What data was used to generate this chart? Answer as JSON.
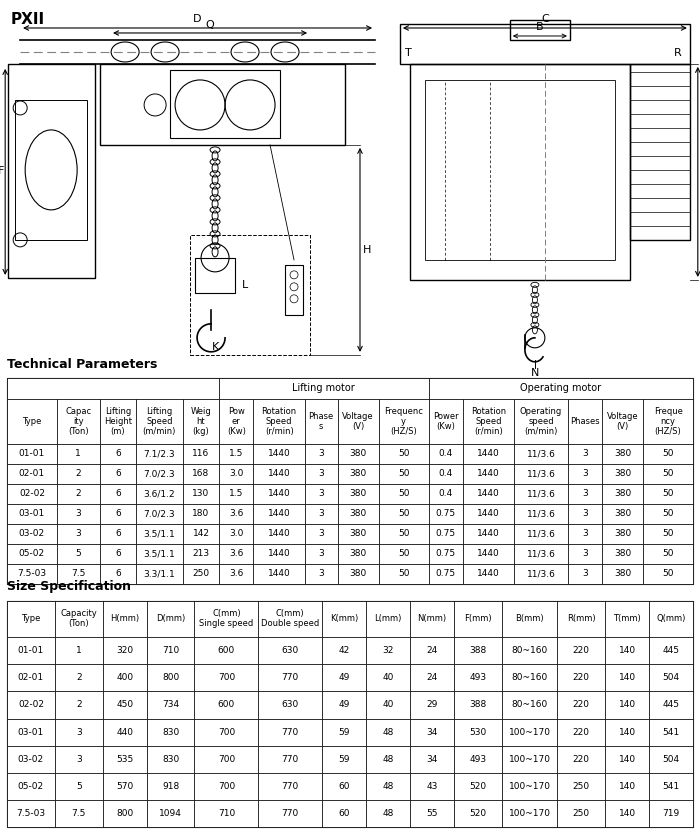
{
  "title": "PXII",
  "section1_title": "Technical Parameters",
  "section2_title": "Size Specification",
  "tech_col_headers": [
    "Type",
    "Capac\nity\n(Ton)",
    "Lifting\nHeight\n(m)",
    "Lifting\nSpeed\n(m/min)",
    "Weig\nht\n(kg)",
    "Pow\ner\n(Kw)",
    "Rotation\nSpeed\n(r/min)",
    "Phase\ns",
    "Voltage\n(V)",
    "Frequenc\ny\n(HZ/S)",
    "Power\n(Kw)",
    "Rotation\nSpeed\n(r/min)",
    "Operating\nspeed\n(m/min)",
    "Phases",
    "Voltage\n(V)",
    "Freque\nncy\n(HZ/S)"
  ],
  "tech_data": [
    [
      "01-01",
      "1",
      "6",
      "7.1/2.3",
      "116",
      "1.5",
      "1440",
      "3",
      "380",
      "50",
      "0.4",
      "1440",
      "11/3.6",
      "3",
      "380",
      "50"
    ],
    [
      "02-01",
      "2",
      "6",
      "7.0/2.3",
      "168",
      "3.0",
      "1440",
      "3",
      "380",
      "50",
      "0.4",
      "1440",
      "11/3.6",
      "3",
      "380",
      "50"
    ],
    [
      "02-02",
      "2",
      "6",
      "3.6/1.2",
      "130",
      "1.5",
      "1440",
      "3",
      "380",
      "50",
      "0.4",
      "1440",
      "11/3.6",
      "3",
      "380",
      "50"
    ],
    [
      "03-01",
      "3",
      "6",
      "7.0/2.3",
      "180",
      "3.6",
      "1440",
      "3",
      "380",
      "50",
      "0.75",
      "1440",
      "11/3.6",
      "3",
      "380",
      "50"
    ],
    [
      "03-02",
      "3",
      "6",
      "3.5/1.1",
      "142",
      "3.0",
      "1440",
      "3",
      "380",
      "50",
      "0.75",
      "1440",
      "11/3.6",
      "3",
      "380",
      "50"
    ],
    [
      "05-02",
      "5",
      "6",
      "3.5/1.1",
      "213",
      "3.6",
      "1440",
      "3",
      "380",
      "50",
      "0.75",
      "1440",
      "11/3.6",
      "3",
      "380",
      "50"
    ],
    [
      "7.5-03",
      "7.5",
      "6",
      "3.3/1.1",
      "250",
      "3.6",
      "1440",
      "3",
      "380",
      "50",
      "0.75",
      "1440",
      "11/3.6",
      "3",
      "380",
      "50"
    ]
  ],
  "size_col_headers": [
    "Type",
    "Capacity\n(Ton)",
    "H(mm)",
    "D(mm)",
    "C(mm)\nSingle speed",
    "C(mm)\nDouble speed",
    "K(mm)",
    "L(mm)",
    "N(mm)",
    "F(mm)",
    "B(mm)",
    "R(mm)",
    "T(mm)",
    "Q(mm)"
  ],
  "size_data": [
    [
      "01-01",
      "1",
      "320",
      "710",
      "600",
      "630",
      "42",
      "32",
      "24",
      "388",
      "80~160",
      "220",
      "140",
      "445"
    ],
    [
      "02-01",
      "2",
      "400",
      "800",
      "700",
      "770",
      "49",
      "40",
      "24",
      "493",
      "80~160",
      "220",
      "140",
      "504"
    ],
    [
      "02-02",
      "2",
      "450",
      "734",
      "600",
      "630",
      "49",
      "40",
      "29",
      "388",
      "80~160",
      "220",
      "140",
      "445"
    ],
    [
      "03-01",
      "3",
      "440",
      "830",
      "700",
      "770",
      "59",
      "48",
      "34",
      "530",
      "100~170",
      "220",
      "140",
      "541"
    ],
    [
      "03-02",
      "3",
      "535",
      "830",
      "700",
      "770",
      "59",
      "48",
      "34",
      "493",
      "100~170",
      "220",
      "140",
      "504"
    ],
    [
      "05-02",
      "5",
      "570",
      "918",
      "700",
      "770",
      "60",
      "48",
      "43",
      "520",
      "100~170",
      "250",
      "140",
      "541"
    ],
    [
      "7.5-03",
      "7.5",
      "800",
      "1094",
      "710",
      "770",
      "60",
      "48",
      "55",
      "520",
      "100~170",
      "250",
      "140",
      "719"
    ]
  ],
  "lifting_motor_span": [
    5,
    9
  ],
  "operating_motor_span": [
    10,
    15
  ],
  "bg_color": "#ffffff",
  "border_color": "#000000",
  "header_bg": "#ffffff"
}
